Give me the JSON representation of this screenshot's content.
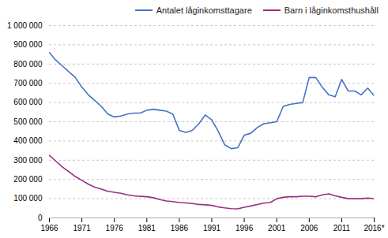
{
  "chart_data": {
    "type": "line",
    "x": [
      1966,
      1967,
      1968,
      1969,
      1970,
      1971,
      1972,
      1973,
      1974,
      1975,
      1976,
      1977,
      1978,
      1979,
      1980,
      1981,
      1982,
      1983,
      1984,
      1985,
      1986,
      1987,
      1988,
      1989,
      1990,
      1991,
      1992,
      1993,
      1994,
      1995,
      1996,
      1997,
      1998,
      1999,
      2000,
      2001,
      2002,
      2003,
      2004,
      2005,
      2006,
      2007,
      2008,
      2009,
      2010,
      2011,
      2012,
      2013,
      2014,
      2015,
      2016
    ],
    "series": [
      {
        "name": "Antalet låginkomsttagare",
        "color": "#4472C4",
        "values": [
          860000,
          820000,
          790000,
          760000,
          730000,
          680000,
          640000,
          610000,
          580000,
          540000,
          525000,
          530000,
          540000,
          545000,
          545000,
          560000,
          565000,
          560000,
          555000,
          540000,
          455000,
          445000,
          455000,
          490000,
          535000,
          510000,
          450000,
          380000,
          360000,
          365000,
          430000,
          440000,
          470000,
          490000,
          495000,
          500000,
          580000,
          590000,
          595000,
          600000,
          730000,
          730000,
          680000,
          640000,
          630000,
          720000,
          660000,
          660000,
          640000,
          675000,
          635000
        ]
      },
      {
        "name": "Barn i låginkomsthushåll",
        "color": "#9B2D82",
        "values": [
          325000,
          295000,
          265000,
          240000,
          215000,
          195000,
          175000,
          160000,
          150000,
          138000,
          133000,
          128000,
          120000,
          115000,
          112000,
          110000,
          105000,
          95000,
          88000,
          85000,
          80000,
          78000,
          75000,
          70000,
          68000,
          65000,
          57000,
          52000,
          48000,
          47000,
          55000,
          62000,
          70000,
          77000,
          80000,
          100000,
          107000,
          110000,
          110000,
          113000,
          113000,
          110000,
          120000,
          125000,
          115000,
          107000,
          100000,
          100000,
          100000,
          103000,
          100000
        ]
      }
    ],
    "xlim": [
      1966,
      2016
    ],
    "xticks": [
      1966,
      1971,
      1976,
      1981,
      1986,
      1991,
      1996,
      2001,
      2006,
      2011,
      {
        "value": 2016,
        "label": "2016*"
      }
    ],
    "ylim": [
      0,
      1000000
    ],
    "yticks": [
      0,
      {
        "value": 100000,
        "label": "100 000"
      },
      {
        "value": 200000,
        "label": "200 000"
      },
      {
        "value": 300000,
        "label": "300 000"
      },
      {
        "value": 400000,
        "label": "400 000"
      },
      {
        "value": 500000,
        "label": "500 000"
      },
      {
        "value": 600000,
        "label": "600 000"
      },
      {
        "value": 700000,
        "label": "700 000"
      },
      {
        "value": 800000,
        "label": "800 000"
      },
      {
        "value": 900000,
        "label": "900 000"
      },
      {
        "value": 1000000,
        "label": "1 000 000"
      }
    ],
    "grid": "y",
    "legend": "upper right"
  }
}
